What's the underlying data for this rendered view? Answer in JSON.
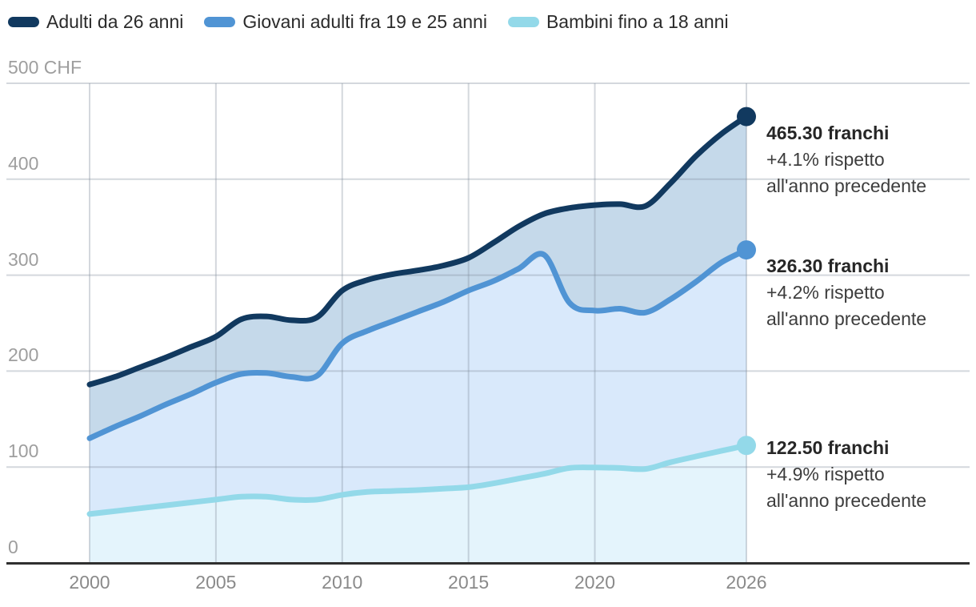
{
  "legend": {
    "items": [
      {
        "label": "Adulti da 26 anni",
        "color": "#11395f"
      },
      {
        "label": "Giovani adulti fra 19 e 25 anni",
        "color": "#5094d4"
      },
      {
        "label": "Bambini fino a 18 anni",
        "color": "#93d9e9"
      }
    ]
  },
  "y_axis": {
    "ticks": [
      {
        "value": 500,
        "label": "500 CHF"
      },
      {
        "value": 400,
        "label": "400"
      },
      {
        "value": 300,
        "label": "300"
      },
      {
        "value": 200,
        "label": "200"
      },
      {
        "value": 100,
        "label": "100"
      },
      {
        "value": 0,
        "label": "0"
      }
    ]
  },
  "x_axis": {
    "ticks": [
      {
        "value": 2000,
        "label": "2000"
      },
      {
        "value": 2005,
        "label": "2005"
      },
      {
        "value": 2010,
        "label": "2010"
      },
      {
        "value": 2015,
        "label": "2015"
      },
      {
        "value": 2020,
        "label": "2020"
      },
      {
        "value": 2026,
        "label": "2026"
      }
    ]
  },
  "annotations": [
    {
      "value": "465.30 franchi",
      "delta_line1": "+4.1% rispetto",
      "delta_line2": "all'anno precedente"
    },
    {
      "value": "326.30 franchi",
      "delta_line1": "+4.2% rispetto",
      "delta_line2": "all'anno precedente"
    },
    {
      "value": "122.50 franchi",
      "delta_line1": "+4.9% rispetto",
      "delta_line2": "all'anno precedente"
    }
  ],
  "chart_data": {
    "type": "area",
    "title": "",
    "xlabel": "",
    "ylabel": "CHF",
    "ylim": [
      0,
      500
    ],
    "xlim": [
      2000,
      2026
    ],
    "grid": true,
    "legend_position": "top",
    "x": [
      2000,
      2001,
      2002,
      2003,
      2004,
      2005,
      2006,
      2007,
      2008,
      2009,
      2010,
      2011,
      2012,
      2013,
      2014,
      2015,
      2016,
      2017,
      2018,
      2019,
      2020,
      2021,
      2022,
      2023,
      2024,
      2025,
      2026
    ],
    "series": [
      {
        "name": "Adulti da 26 anni",
        "color": "#11395f",
        "fill_below": "#c5d9ea",
        "end_value_label": "465.30 franchi",
        "values": [
          186,
          194,
          204,
          214,
          225,
          236,
          254,
          257,
          253,
          256,
          284,
          295,
          301,
          305,
          310,
          318,
          334,
          351,
          364,
          370,
          373,
          374,
          372,
          396,
          424,
          447,
          465.3
        ]
      },
      {
        "name": "Giovani adulti fra 19 e 25 anni",
        "color": "#5094d4",
        "fill_below": "#d9e9fb",
        "end_value_label": "326.30 franchi",
        "values": [
          130,
          142,
          153,
          165,
          176,
          188,
          197,
          198,
          194,
          195,
          229,
          242,
          252,
          262,
          272,
          284,
          294,
          307,
          321,
          271,
          263,
          265,
          261,
          275,
          293,
          313.1,
          326.3
        ]
      },
      {
        "name": "Bambini fino a 18 anni",
        "color": "#93d9e9",
        "fill_below": "#e4f4fc",
        "end_value_label": "122.50 franchi",
        "values": [
          51,
          54,
          57,
          60,
          63,
          66,
          69,
          69,
          66,
          66,
          71,
          74,
          75,
          76,
          77.5,
          79,
          83,
          88,
          93,
          99,
          99.5,
          99,
          98,
          105,
          111,
          116.8,
          122.5
        ]
      }
    ]
  }
}
